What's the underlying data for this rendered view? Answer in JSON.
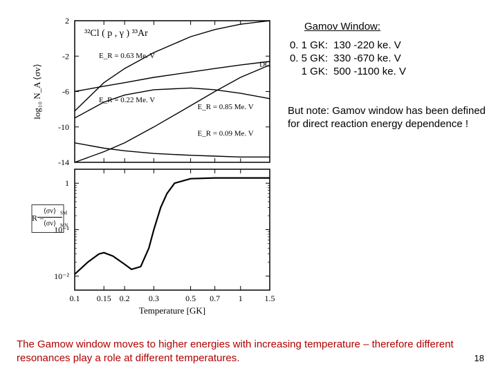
{
  "info": {
    "heading": "Gamov Window:",
    "rows": [
      {
        "t": "0. 1 GK:",
        "v": "130 -220 ke. V"
      },
      {
        "t": "0. 5 GK:",
        "v": "330 -670 ke. V"
      },
      {
        "t": "1 GK:",
        "v": "500 -1100 ke. V"
      }
    ],
    "note": "But note: Gamov window has been defined for direct reaction energy dependence !"
  },
  "footer": {
    "text": "The Gamow window moves to higher energies with increasing temperature – therefore different resonances play a role at different temperatures.",
    "pagenum": "18"
  },
  "top_chart": {
    "type": "line",
    "title": "³²Cl ( p , γ ) ³³Ar",
    "title_fontsize": 14,
    "ylabel": "log₁₀ N_A ⟨σv⟩",
    "label_fontsize": 13,
    "ylim": [
      -14,
      2
    ],
    "ytick_step": 4,
    "curves": [
      {
        "label": "E_R = 0.63 Me. V",
        "label_xy": [
          0.14,
          -2.2
        ],
        "points": [
          [
            0.1,
            -8.2
          ],
          [
            0.15,
            -5.0
          ],
          [
            0.2,
            -3.4
          ],
          [
            0.3,
            -1.6
          ],
          [
            0.5,
            0.2
          ],
          [
            0.7,
            1.0
          ],
          [
            1.0,
            1.6
          ],
          [
            1.5,
            2.0
          ]
        ]
      },
      {
        "label": "DC",
        "label_xy": [
          1.3,
          -3.2
        ],
        "points": [
          [
            0.1,
            -6.0
          ],
          [
            0.15,
            -5.4
          ],
          [
            0.2,
            -5.0
          ],
          [
            0.3,
            -4.4
          ],
          [
            0.5,
            -3.8
          ],
          [
            0.7,
            -3.4
          ],
          [
            1.0,
            -3.0
          ],
          [
            1.5,
            -2.6
          ]
        ]
      },
      {
        "label": "E_R = 0.22 Me. V",
        "label_xy": [
          0.14,
          -7.2
        ],
        "points": [
          [
            0.1,
            -9.0
          ],
          [
            0.15,
            -7.2
          ],
          [
            0.2,
            -6.4
          ],
          [
            0.3,
            -5.8
          ],
          [
            0.5,
            -5.6
          ],
          [
            0.7,
            -5.8
          ],
          [
            1.0,
            -6.2
          ],
          [
            1.5,
            -6.8
          ]
        ]
      },
      {
        "label": "E_R = 0.85 Me. V",
        "label_xy": [
          0.55,
          -8.0
        ],
        "points": [
          [
            0.1,
            -14.0
          ],
          [
            0.15,
            -12.8
          ],
          [
            0.2,
            -11.8
          ],
          [
            0.3,
            -10.0
          ],
          [
            0.5,
            -7.6
          ],
          [
            0.7,
            -6.0
          ],
          [
            1.0,
            -4.4
          ],
          [
            1.5,
            -3.0
          ]
        ]
      },
      {
        "label": "E_R = 0.09 Me. V",
        "label_xy": [
          0.55,
          -11.0
        ],
        "points": [
          [
            0.1,
            -11.8
          ],
          [
            0.15,
            -12.4
          ],
          [
            0.2,
            -12.7
          ],
          [
            0.3,
            -13.0
          ],
          [
            0.5,
            -13.2
          ],
          [
            0.7,
            -13.3
          ],
          [
            1.0,
            -13.4
          ],
          [
            1.5,
            -13.4
          ]
        ]
      }
    ],
    "line_color": "#000000",
    "background_color": "#ffffff",
    "axis_color": "#000000"
  },
  "bottom_chart": {
    "type": "line",
    "xlabel": "Temperature [GK]",
    "ylabel_tex": "R = ⟨σv⟩_SM / ⟨σv⟩_MN",
    "label_fontsize": 13,
    "xticks": [
      0.1,
      0.15,
      0.2,
      0.3,
      0.5,
      0.7,
      1,
      1.5
    ],
    "xscale": "log",
    "yscale": "log",
    "ylim": [
      0.005,
      2
    ],
    "yticks": [
      0.01,
      0.1,
      1
    ],
    "yticklabels": [
      "10⁻²",
      "10⁻¹",
      "1"
    ],
    "curve": {
      "points": [
        [
          0.1,
          0.011
        ],
        [
          0.12,
          0.02
        ],
        [
          0.14,
          0.03
        ],
        [
          0.15,
          0.032
        ],
        [
          0.17,
          0.027
        ],
        [
          0.2,
          0.018
        ],
        [
          0.22,
          0.014
        ],
        [
          0.25,
          0.016
        ],
        [
          0.28,
          0.04
        ],
        [
          0.3,
          0.1
        ],
        [
          0.33,
          0.3
        ],
        [
          0.36,
          0.6
        ],
        [
          0.4,
          1.0
        ],
        [
          0.5,
          1.25
        ],
        [
          0.7,
          1.3
        ],
        [
          1.0,
          1.3
        ],
        [
          1.5,
          1.3
        ]
      ]
    },
    "line_color": "#000000",
    "line_width": 2.2,
    "background_color": "#ffffff",
    "axis_color": "#000000"
  }
}
